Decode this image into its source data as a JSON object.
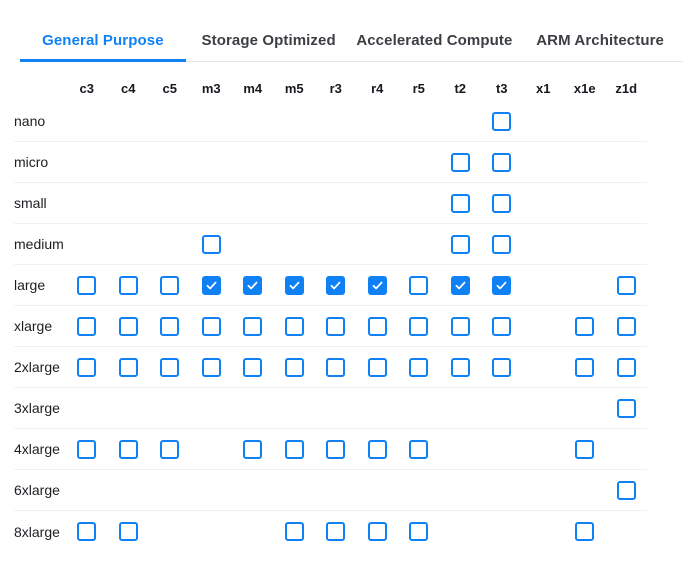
{
  "colors": {
    "accent": "#1081f5",
    "tab_inactive_text": "#3b3f44",
    "row_separator": "#f1f1f1",
    "checked_checkmark": "#ffffff"
  },
  "tabs": {
    "items": [
      {
        "label": "General Purpose",
        "active": true
      },
      {
        "label": "Storage Optimized",
        "active": false
      },
      {
        "label": "Accelerated Compute",
        "active": false
      },
      {
        "label": "ARM Architecture",
        "active": false
      }
    ]
  },
  "grid": {
    "columns": [
      "c3",
      "c4",
      "c5",
      "m3",
      "m4",
      "m5",
      "r3",
      "r4",
      "r5",
      "t2",
      "t3",
      "x1",
      "x1e",
      "z1d"
    ],
    "cell_states": {
      "0": "none",
      "1": "unchecked",
      "2": "checked"
    },
    "rows": [
      {
        "label": "nano",
        "cells": [
          0,
          0,
          0,
          0,
          0,
          0,
          0,
          0,
          0,
          0,
          1,
          0,
          0,
          0
        ]
      },
      {
        "label": "micro",
        "cells": [
          0,
          0,
          0,
          0,
          0,
          0,
          0,
          0,
          0,
          1,
          1,
          0,
          0,
          0
        ]
      },
      {
        "label": "small",
        "cells": [
          0,
          0,
          0,
          0,
          0,
          0,
          0,
          0,
          0,
          1,
          1,
          0,
          0,
          0
        ]
      },
      {
        "label": "medium",
        "cells": [
          0,
          0,
          0,
          1,
          0,
          0,
          0,
          0,
          0,
          1,
          1,
          0,
          0,
          0
        ]
      },
      {
        "label": "large",
        "cells": [
          1,
          1,
          1,
          2,
          2,
          2,
          2,
          2,
          1,
          2,
          2,
          0,
          0,
          1
        ]
      },
      {
        "label": "xlarge",
        "cells": [
          1,
          1,
          1,
          1,
          1,
          1,
          1,
          1,
          1,
          1,
          1,
          0,
          1,
          1
        ]
      },
      {
        "label": "2xlarge",
        "cells": [
          1,
          1,
          1,
          1,
          1,
          1,
          1,
          1,
          1,
          1,
          1,
          0,
          1,
          1
        ]
      },
      {
        "label": "3xlarge",
        "cells": [
          0,
          0,
          0,
          0,
          0,
          0,
          0,
          0,
          0,
          0,
          0,
          0,
          0,
          1
        ]
      },
      {
        "label": "4xlarge",
        "cells": [
          1,
          1,
          1,
          0,
          1,
          1,
          1,
          1,
          1,
          0,
          0,
          0,
          1,
          0
        ]
      },
      {
        "label": "6xlarge",
        "cells": [
          0,
          0,
          0,
          0,
          0,
          0,
          0,
          0,
          0,
          0,
          0,
          0,
          0,
          1
        ]
      },
      {
        "label": "8xlarge",
        "cells": [
          1,
          1,
          0,
          0,
          0,
          1,
          1,
          1,
          1,
          0,
          0,
          0,
          1,
          0
        ]
      }
    ]
  }
}
